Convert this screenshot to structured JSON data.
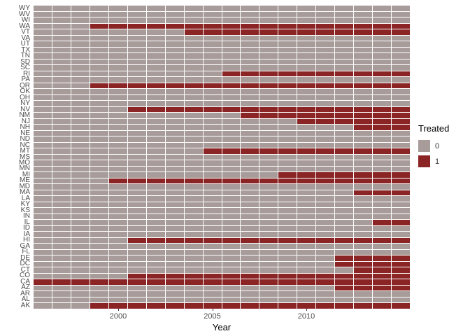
{
  "chart_data": {
    "type": "heatmap",
    "title": "",
    "xlabel": "Year",
    "ylabel": "",
    "x_years": {
      "start": 1996,
      "end": 2015
    },
    "x_ticks": [
      "2000",
      "2005",
      "2010"
    ],
    "grid": "white gaps between tiles",
    "legend": {
      "title": "Treated",
      "position": "right",
      "entries": [
        {
          "label": "0",
          "color": "#A79C9A"
        },
        {
          "label": "1",
          "color": "#8B2525"
        }
      ]
    },
    "colors": {
      "untreated": "#A79C9A",
      "treated": "#8B2525",
      "axis_text": "#4d4d4d",
      "background": "#ffffff"
    },
    "value_meaning": "treated_from = first year tile shown in treated color (1); null = never treated (all 0)",
    "states": [
      {
        "label": "WY",
        "treated_from": null
      },
      {
        "label": "WV",
        "treated_from": null
      },
      {
        "label": "WI",
        "treated_from": null
      },
      {
        "label": "WA",
        "treated_from": 1999
      },
      {
        "label": "VT",
        "treated_from": 2004
      },
      {
        "label": "VA",
        "treated_from": null
      },
      {
        "label": "UT",
        "treated_from": null
      },
      {
        "label": "TX",
        "treated_from": null
      },
      {
        "label": "TN",
        "treated_from": null
      },
      {
        "label": "SD",
        "treated_from": null
      },
      {
        "label": "SC",
        "treated_from": null
      },
      {
        "label": "RI",
        "treated_from": 2006
      },
      {
        "label": "PA",
        "treated_from": null
      },
      {
        "label": "OR",
        "treated_from": 1999
      },
      {
        "label": "OK",
        "treated_from": null
      },
      {
        "label": "OH",
        "treated_from": null
      },
      {
        "label": "NY",
        "treated_from": null
      },
      {
        "label": "NV",
        "treated_from": 2001
      },
      {
        "label": "NM",
        "treated_from": 2007
      },
      {
        "label": "NJ",
        "treated_from": 2010
      },
      {
        "label": "NH",
        "treated_from": 2013
      },
      {
        "label": "NE",
        "treated_from": null
      },
      {
        "label": "ND",
        "treated_from": null
      },
      {
        "label": "NC",
        "treated_from": null
      },
      {
        "label": "MT",
        "treated_from": 2005
      },
      {
        "label": "MS",
        "treated_from": null
      },
      {
        "label": "MO",
        "treated_from": null
      },
      {
        "label": "MN",
        "treated_from": null
      },
      {
        "label": "MI",
        "treated_from": 2009
      },
      {
        "label": "ME",
        "treated_from": 2000
      },
      {
        "label": "MD",
        "treated_from": null
      },
      {
        "label": "MA",
        "treated_from": 2013
      },
      {
        "label": "LA",
        "treated_from": null
      },
      {
        "label": "KY",
        "treated_from": null
      },
      {
        "label": "KS",
        "treated_from": null
      },
      {
        "label": "IN",
        "treated_from": null
      },
      {
        "label": "IL",
        "treated_from": 2014
      },
      {
        "label": "ID",
        "treated_from": null
      },
      {
        "label": "IA",
        "treated_from": null
      },
      {
        "label": "HI",
        "treated_from": 2001
      },
      {
        "label": "GA",
        "treated_from": null
      },
      {
        "label": "FL",
        "treated_from": null
      },
      {
        "label": "DE",
        "treated_from": 2012
      },
      {
        "label": "DC",
        "treated_from": 2012
      },
      {
        "label": "CT",
        "treated_from": 2013
      },
      {
        "label": "CO",
        "treated_from": 2001
      },
      {
        "label": "CA",
        "treated_from": 1996
      },
      {
        "label": "AZ",
        "treated_from": 2012
      },
      {
        "label": "AR",
        "treated_from": null
      },
      {
        "label": "AL",
        "treated_from": null
      },
      {
        "label": "AK",
        "treated_from": 1999
      }
    ]
  }
}
